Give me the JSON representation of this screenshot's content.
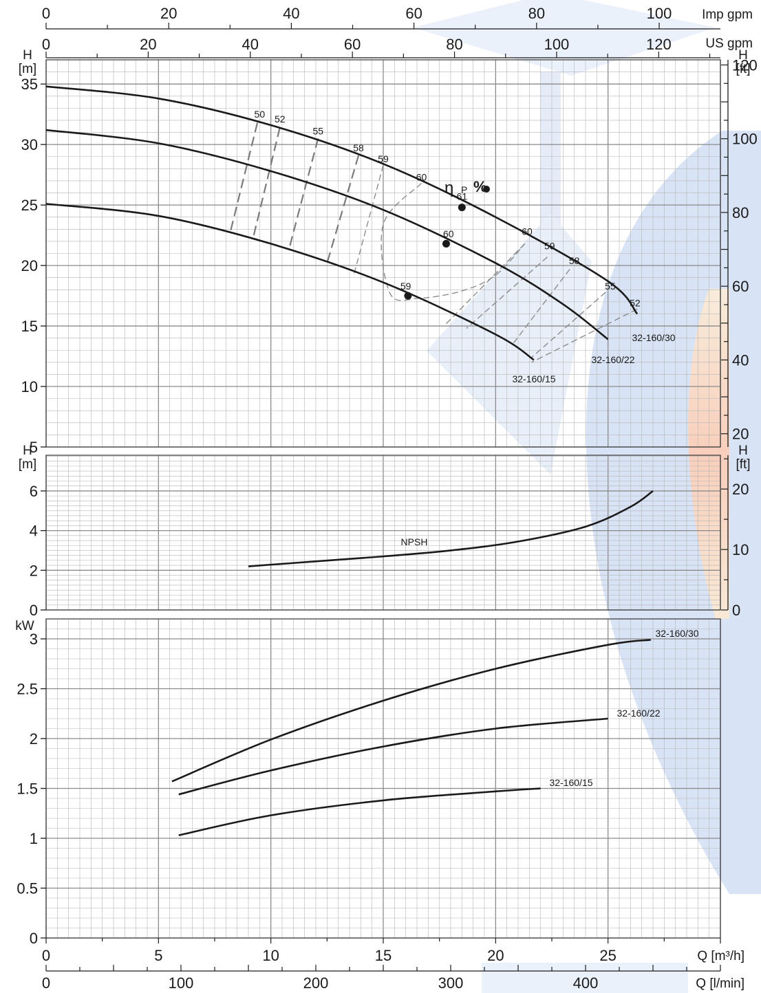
{
  "chart_data": [
    {
      "id": "head",
      "type": "line",
      "ylabel_left": "H\n[m]",
      "ylabel_right": "H\n[ft]",
      "x_range": [
        0,
        30
      ],
      "ylim": [
        5,
        37
      ],
      "yticks": [
        5,
        10,
        15,
        20,
        25,
        30,
        35
      ],
      "yticks_ft": [
        20,
        40,
        60,
        80,
        100,
        120
      ],
      "series": [
        {
          "name": "32-160/30",
          "points": [
            [
              0,
              34.8
            ],
            [
              5,
              33.8
            ],
            [
              10,
              31.6
            ],
            [
              15,
              28.4
            ],
            [
              20,
              24.0
            ],
            [
              25,
              18.7
            ],
            [
              26.3,
              16.0
            ]
          ]
        },
        {
          "name": "32-160/22",
          "points": [
            [
              0,
              31.2
            ],
            [
              5,
              30.1
            ],
            [
              10,
              27.8
            ],
            [
              15,
              24.6
            ],
            [
              20,
              20.2
            ],
            [
              23,
              16.8
            ],
            [
              25,
              13.9
            ]
          ]
        },
        {
          "name": "32-160/15",
          "points": [
            [
              0,
              25.1
            ],
            [
              5,
              24.1
            ],
            [
              10,
              21.8
            ],
            [
              15,
              18.6
            ],
            [
              20,
              14.3
            ],
            [
              21.7,
              12.2
            ]
          ]
        }
      ],
      "series_labels": [
        "32-160/30",
        "32-160/22",
        "32-160/15"
      ],
      "efficiency_symbol": "η",
      "efficiency_sub": "P",
      "efficiency_unit": "%",
      "efficiency_labels": [
        {
          "text": "50",
          "x": 9.5,
          "y": 32.0
        },
        {
          "text": "52",
          "x": 10.4,
          "y": 31.6
        },
        {
          "text": "55",
          "x": 12.1,
          "y": 30.6
        },
        {
          "text": "58",
          "x": 13.9,
          "y": 29.2
        },
        {
          "text": "59",
          "x": 15.0,
          "y": 28.3
        },
        {
          "text": "60",
          "x": 16.7,
          "y": 26.8
        },
        {
          "text": "61",
          "x": 18.5,
          "y": 25.2
        },
        {
          "text": "60",
          "x": 17.9,
          "y": 22.1
        },
        {
          "text": "59",
          "x": 16.0,
          "y": 17.8
        },
        {
          "text": "60",
          "x": 21.4,
          "y": 22.3
        },
        {
          "text": "59",
          "x": 22.4,
          "y": 21.1
        },
        {
          "text": "58",
          "x": 23.5,
          "y": 19.9
        },
        {
          "text": "55",
          "x": 25.1,
          "y": 17.8
        },
        {
          "text": "52",
          "x": 26.2,
          "y": 16.4
        }
      ],
      "bep_points": [
        [
          18.5,
          24.8
        ],
        [
          17.8,
          21.8
        ],
        [
          16.1,
          17.5
        ]
      ],
      "efficiency_lines": [
        [
          [
            9.4,
            31.8
          ],
          [
            8.2,
            22.8
          ]
        ],
        [
          [
            10.4,
            31.4
          ],
          [
            9.2,
            22.2
          ]
        ],
        [
          [
            12.1,
            30.5
          ],
          [
            10.8,
            21.3
          ]
        ],
        [
          [
            13.9,
            29.1
          ],
          [
            12.5,
            20.2
          ]
        ],
        [
          [
            15.0,
            28.3
          ],
          [
            13.7,
            19.3
          ]
        ],
        [
          [
            21.3,
            21.8
          ],
          [
            17.7,
            15.0
          ]
        ],
        [
          [
            22.3,
            20.7
          ],
          [
            18.7,
            14.8
          ]
        ],
        [
          [
            23.3,
            19.7
          ],
          [
            20.8,
            13.6
          ]
        ],
        [
          [
            24.9,
            17.8
          ],
          [
            21.6,
            12.4
          ]
        ],
        [
          [
            26.3,
            16.4
          ],
          [
            21.6,
            12.0
          ]
        ]
      ],
      "efficiency_loop_60": [
        [
          16.7,
          26.8
        ],
        [
          15.0,
          23.4
        ],
        [
          15.3,
          17.7
        ],
        [
          16.6,
          17.3
        ],
        [
          18.5,
          17.9
        ],
        [
          20.0,
          19.2
        ],
        [
          21.3,
          21.8
        ]
      ]
    },
    {
      "id": "npsh",
      "type": "line",
      "ylabel_left": "H\n[m]",
      "ylabel_right": "H\n[ft]",
      "x_range": [
        0,
        30
      ],
      "ylim": [
        0,
        7.8
      ],
      "yticks": [
        0,
        2,
        4,
        6
      ],
      "yticks_ft": [
        0,
        10,
        20
      ],
      "series": [
        {
          "name": "NPSH",
          "points": [
            [
              9,
              2.2
            ],
            [
              12,
              2.45
            ],
            [
              15,
              2.7
            ],
            [
              18,
              3.0
            ],
            [
              21,
              3.45
            ],
            [
              24,
              4.2
            ],
            [
              26,
              5.2
            ],
            [
              27,
              6.0
            ]
          ]
        }
      ],
      "curve_label": "NPSH"
    },
    {
      "id": "power",
      "type": "line",
      "ylabel_left": "kW",
      "x_range": [
        0,
        30
      ],
      "ylim": [
        0,
        3.2
      ],
      "yticks": [
        0,
        0.5,
        1,
        1.5,
        2,
        2.5,
        3
      ],
      "ytick_labels": [
        "0",
        "0.5",
        "1",
        "1.5",
        "2",
        "2.5",
        "3"
      ],
      "series": [
        {
          "name": "32-160/30",
          "points": [
            [
              5.6,
              1.57
            ],
            [
              10,
              1.99
            ],
            [
              15,
              2.38
            ],
            [
              20,
              2.7
            ],
            [
              25,
              2.94
            ],
            [
              26.9,
              2.99
            ]
          ]
        },
        {
          "name": "32-160/22",
          "points": [
            [
              5.9,
              1.44
            ],
            [
              10,
              1.68
            ],
            [
              15,
              1.92
            ],
            [
              20,
              2.1
            ],
            [
              25,
              2.2
            ]
          ]
        },
        {
          "name": "32-160/15",
          "points": [
            [
              5.9,
              1.03
            ],
            [
              10,
              1.23
            ],
            [
              15,
              1.38
            ],
            [
              20,
              1.47
            ],
            [
              22,
              1.5
            ]
          ]
        }
      ]
    }
  ],
  "axes": {
    "top_imp_label": "Imp gpm",
    "top_imp_ticks": [
      0,
      20,
      40,
      60,
      80,
      100
    ],
    "top_us_label": "US gpm",
    "top_us_ticks": [
      0,
      20,
      40,
      60,
      80,
      100,
      120
    ],
    "bottom_q_label": "Q [m³/h]",
    "bottom_q_ticks": [
      0,
      5,
      10,
      15,
      20,
      25
    ],
    "bottom_lmin_label": "Q [l/min]",
    "bottom_lmin_ticks": [
      0,
      100,
      200,
      300,
      400
    ]
  },
  "colors": {
    "curve": "#1a1a1a",
    "grid_minor": "#b5b5b5",
    "grid_major": "#8a8a8a",
    "dash_heavy": "#7a7a7a",
    "dash_light": "#8c8c8c",
    "watermark_blue": "#7ea3de",
    "watermark_orange": "#ff9d6a"
  }
}
